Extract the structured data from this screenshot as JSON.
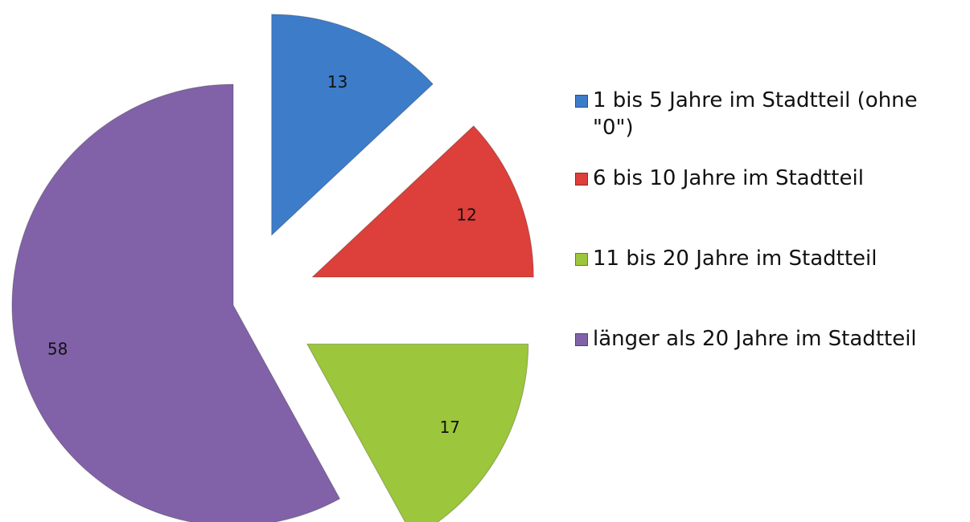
{
  "chart_data": {
    "type": "pie",
    "categories": [
      "1 bis 5 Jahre im Stadtteil (ohne \"0\")",
      "6 bis 10 Jahre im Stadtteil",
      "11 bis 20 Jahre im Stadtteil",
      "länger als 20 Jahre im Stadtteil"
    ],
    "values": [
      13,
      12,
      17,
      58
    ],
    "colors": [
      "#3d7cc9",
      "#dd3f3a",
      "#9cc63b",
      "#8162a8"
    ],
    "legend": "right"
  }
}
